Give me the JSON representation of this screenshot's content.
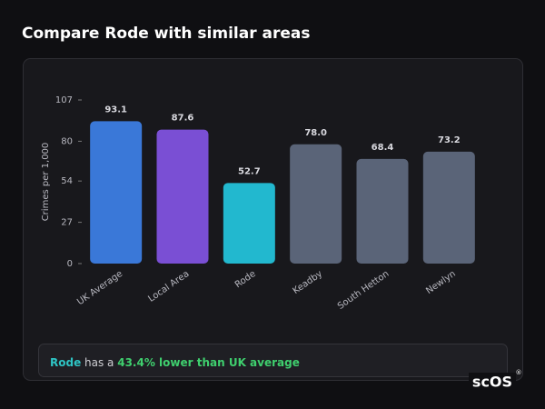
{
  "page": {
    "heading": "Compare Rode with similar areas",
    "summary": {
      "place": "Rode",
      "middle": " has a ",
      "highlight": "43.4% lower than UK average"
    },
    "logo": "scOS",
    "logo_mark": "®"
  },
  "chart_data": {
    "type": "bar",
    "ylabel": "Crimes per 1,000",
    "categories": [
      "UK Average",
      "Local Area",
      "Rode",
      "Keadby",
      "South Hetton",
      "Newlyn"
    ],
    "values": [
      93.1,
      87.6,
      52.7,
      78,
      68.4,
      73.2
    ],
    "value_labels": [
      "93.1",
      "87.6",
      "52.7",
      "78.0",
      "68.4",
      "73.2"
    ],
    "colors": [
      "#3a78d8",
      "#7a4fd4",
      "#22b8cf",
      "#5a6478",
      "#5a6478",
      "#5a6478"
    ],
    "ylim": [
      0,
      107
    ],
    "yticks": [
      0,
      27,
      54,
      80,
      107
    ]
  }
}
